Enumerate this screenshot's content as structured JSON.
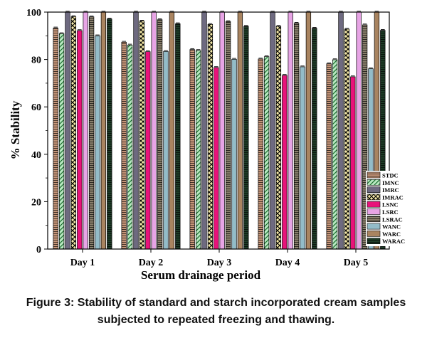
{
  "chart_data": {
    "type": "bar",
    "title": "",
    "xlabel": "Serum drainage period",
    "ylabel": "% Stability",
    "ylim": [
      0,
      100
    ],
    "yticks": [
      0,
      20,
      40,
      60,
      80,
      100
    ],
    "grid": false,
    "legend_position": "bottom-right",
    "categories": [
      "Day 1",
      "Day 2",
      "Day 3",
      "Day 4",
      "Day 5"
    ],
    "series": [
      {
        "name": "STDC",
        "values": [
          93.3,
          87.3,
          84.2,
          80.2,
          78.2
        ],
        "color": "#c8977a",
        "pattern": "hlines"
      },
      {
        "name": "IMNC",
        "values": [
          90.9,
          86.1,
          83.8,
          81.2,
          79.9
        ],
        "color": "#b8e8c0",
        "pattern": "diag"
      },
      {
        "name": "IMRC",
        "values": [
          100,
          100,
          100,
          100,
          100
        ],
        "color": "#6e6a80",
        "pattern": "solid"
      },
      {
        "name": "IMRAC",
        "values": [
          98.1,
          96.2,
          94.8,
          94.0,
          92.8
        ],
        "color": "#f3e7a6",
        "pattern": "cross"
      },
      {
        "name": "LSNC",
        "values": [
          92.2,
          83.3,
          76.6,
          73.3,
          72.7
        ],
        "color": "#e8137a",
        "pattern": "solid"
      },
      {
        "name": "LSRC",
        "values": [
          100,
          100,
          100,
          100,
          100
        ],
        "color": "#e7a4e5",
        "pattern": "solid"
      },
      {
        "name": "LSRAC",
        "values": [
          98.0,
          96.8,
          96.0,
          95.3,
          94.6
        ],
        "color": "#8a806c",
        "pattern": "hlines"
      },
      {
        "name": "WANC",
        "values": [
          90.0,
          83.4,
          80.1,
          76.9,
          76.1
        ],
        "color": "#93bcc8",
        "pattern": "solid"
      },
      {
        "name": "WARC",
        "values": [
          100,
          100,
          100,
          100,
          100
        ],
        "color": "#a98460",
        "pattern": "solid"
      },
      {
        "name": "WARAC",
        "values": [
          97.1,
          95.1,
          94.0,
          93.2,
          92.3
        ],
        "color": "#1f3d28",
        "pattern": "hlines"
      }
    ]
  },
  "caption": {
    "line1": "Figure 3: Stability of standard and starch incorporated cream samples",
    "line2": "subjected to repeated freezing and thawing."
  }
}
